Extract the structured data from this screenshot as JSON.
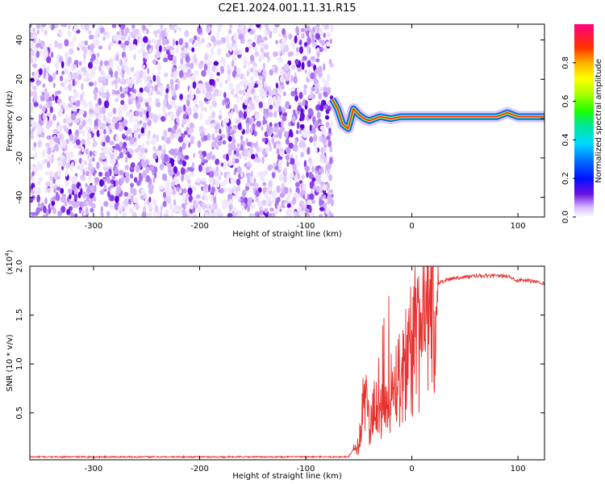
{
  "title": "C2E1.2024.001.11.31.R15",
  "colors": {
    "snr_line": "#e8322f",
    "background": "#ffffff",
    "signal_core": "#ff2020",
    "sparse_dots": "#c8a8f0",
    "dense_dots": "#6a10e0"
  },
  "chart_data": [
    {
      "type": "heatmap",
      "xlabel": "Height of straight line (km)",
      "ylabel": "Frequency (Hz)",
      "xlim": [
        -360,
        125
      ],
      "ylim": [
        -50,
        48
      ],
      "xticks": [
        -300,
        -200,
        -100,
        0,
        100
      ],
      "yticks": [
        -40,
        -20,
        0,
        20,
        40
      ],
      "xtick_labels": [
        "-300",
        "-200",
        "-100",
        "0",
        "100"
      ],
      "ytick_labels": [
        "-40",
        "-20",
        "0",
        "20",
        "40"
      ],
      "noise_region_x": [
        -360,
        -75
      ],
      "signal_track": {
        "x": [
          -75,
          -70,
          -65,
          -60,
          -55,
          -50,
          -45,
          -40,
          -30,
          -20,
          -10,
          0,
          20,
          40,
          60,
          80,
          90,
          100,
          125
        ],
        "y": [
          10,
          5,
          -3,
          -5,
          5,
          2,
          0,
          -1,
          1,
          0,
          1,
          1,
          1,
          1,
          1,
          1,
          3,
          1,
          1
        ]
      },
      "colorbar": {
        "label": "Normalized spectral amplitude",
        "range": [
          0.0,
          1.0
        ],
        "ticks": [
          0.0,
          0.2,
          0.4,
          0.6,
          0.8
        ],
        "tick_labels": [
          "0.0",
          "0.2",
          "0.4",
          "0.6",
          "0.8"
        ]
      }
    },
    {
      "type": "line",
      "xlabel": "Height of straight line (km)",
      "ylabel": "SNR (10 * v/v)",
      "scale_label": "(x10",
      "scale_exponent": "4",
      "scale_close": ")",
      "xlim": [
        -360,
        125
      ],
      "ylim": [
        0.02,
        2.0
      ],
      "xticks": [
        -300,
        -200,
        -100,
        0,
        100
      ],
      "yticks": [
        0.5,
        1.0,
        1.5,
        2.0
      ],
      "xtick_labels": [
        "-300",
        "-200",
        "-100",
        "0",
        "100"
      ],
      "ytick_labels": [
        "0.5",
        "1.0",
        "1.5",
        "2.0"
      ],
      "series": [
        {
          "x": [
            -360,
            -300,
            -200,
            -100,
            -60,
            -50,
            -45,
            -40,
            -35,
            -30,
            -25,
            -20,
            -15,
            -10,
            -5,
            0,
            5,
            10,
            15,
            20,
            25,
            30,
            40,
            60,
            80,
            90,
            95,
            100,
            105,
            110,
            125
          ],
          "y": [
            0.05,
            0.05,
            0.05,
            0.05,
            0.05,
            0.2,
            0.8,
            0.35,
            0.6,
            0.5,
            0.7,
            0.8,
            0.95,
            1.0,
            1.15,
            1.3,
            1.35,
            1.45,
            1.6,
            1.75,
            1.82,
            1.85,
            1.88,
            1.9,
            1.9,
            1.9,
            1.88,
            1.85,
            1.86,
            1.85,
            1.83
          ]
        }
      ]
    }
  ]
}
